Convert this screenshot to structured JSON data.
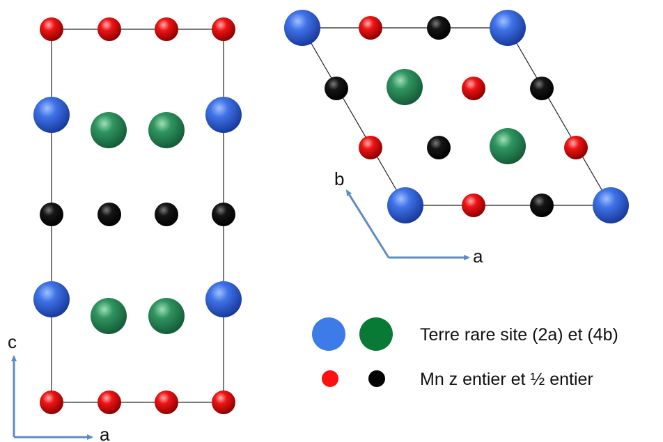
{
  "colors": {
    "rare_earth_2a": "#2f5fd6",
    "rare_earth_4b": "#2e8b57",
    "mn_integer_z": "#e10d0d",
    "mn_half_z": "#0c0c0c",
    "axis_arrow": "#5b8cc4",
    "legend_blue": "#3d7be8",
    "legend_green": "#087a35",
    "legend_red": "#ff1010",
    "legend_black": "#000000"
  },
  "left_panel": {
    "axis_vertical_label": "c",
    "axis_horizontal_label": "a"
  },
  "right_panel": {
    "axis_vertical_label": "b",
    "axis_horizontal_label": "a"
  },
  "legend": {
    "rare_earth_label": "Terre rare site (2a) et (4b)",
    "mn_label": "Mn z entier et ½ entier"
  }
}
